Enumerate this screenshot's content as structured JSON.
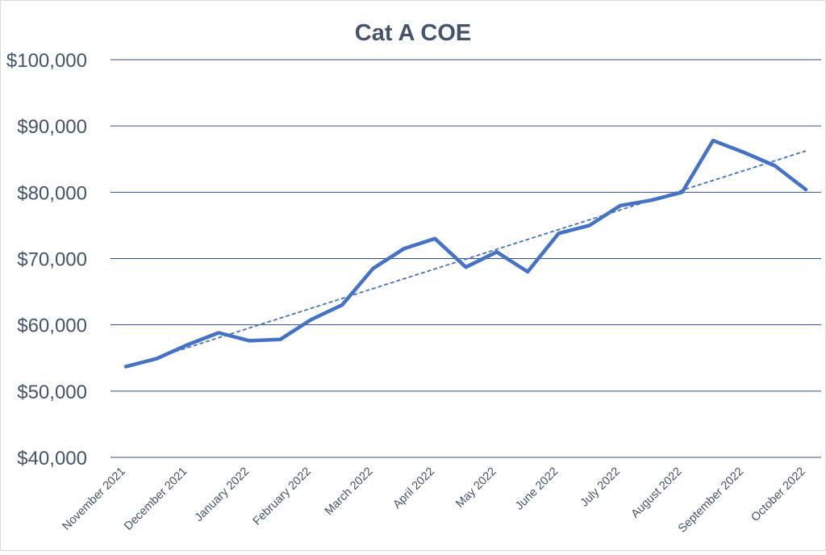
{
  "chart_data": {
    "type": "line",
    "title": "Cat A COE",
    "xlabel": "",
    "ylabel": "",
    "ylim": [
      40000,
      100000
    ],
    "y_ticks": [
      40000,
      50000,
      60000,
      70000,
      80000,
      90000,
      100000
    ],
    "y_tick_labels": [
      "$40,000",
      "$50,000",
      "$60,000",
      "$70,000",
      "$80,000",
      "$90,000",
      "$100,000"
    ],
    "x_tick_labels": [
      "November 2021",
      "December 2021",
      "January 2022",
      "February 2022",
      "March 2022",
      "April 2022",
      "May 2022",
      "June 2022",
      "July 2022",
      "August 2022",
      "September 2022",
      "October 2022"
    ],
    "points_per_label": 2,
    "series": [
      {
        "values": [
          53700,
          54900,
          57000,
          58800,
          57600,
          57800,
          60800,
          63000,
          68500,
          71500,
          73000,
          68700,
          71000,
          68000,
          73800,
          75000,
          78000,
          78800,
          80000,
          87800,
          86000,
          84000,
          80400
        ],
        "color": "#4472c4"
      }
    ],
    "trendline": {
      "type": "linear",
      "style": "dashed",
      "color": "#4472c4"
    },
    "grid": true,
    "colors": {
      "title": "#44546a",
      "axis_text": "#44546a",
      "gridline": "#2f4f86",
      "line": "#4472c4"
    }
  }
}
